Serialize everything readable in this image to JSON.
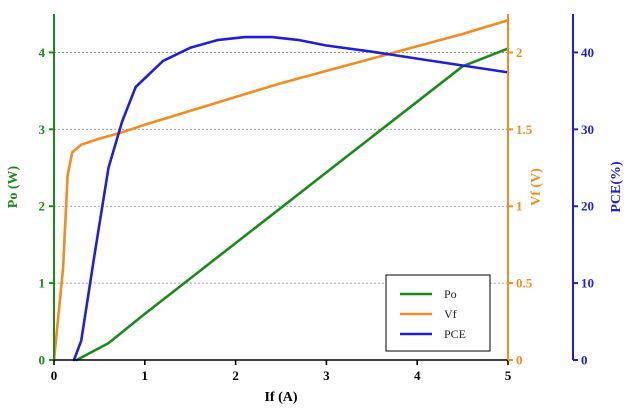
{
  "chart_data": {
    "type": "line",
    "title": "",
    "xlabel": "If (A)",
    "xlim": [
      0,
      5
    ],
    "x_ticks": [
      "0",
      "1",
      "2",
      "3",
      "4",
      "5"
    ],
    "axes": {
      "left": {
        "label": "Po (W)",
        "range": [
          0,
          4.5
        ],
        "ticks": [
          "0",
          "1",
          "2",
          "3",
          "4"
        ],
        "color": "#1a8a1a"
      },
      "right": {
        "label": "Vf (V)",
        "range": [
          0,
          2.25
        ],
        "ticks": [
          "0",
          "0.5",
          "1",
          "1.5",
          "2"
        ],
        "color": "#f28c1c"
      },
      "far_right": {
        "label": "PCE(%)",
        "range": [
          0,
          45
        ],
        "ticks": [
          "0",
          "10",
          "20",
          "30",
          "40"
        ],
        "color": "#1f1fd6"
      }
    },
    "grid": {
      "horizontal": true,
      "style": "dotted",
      "at_left_values": [
        1,
        2,
        3,
        4
      ]
    },
    "legend": {
      "position": "bottom-right",
      "entries": [
        "Po",
        "Vf",
        "PCE"
      ]
    },
    "series": [
      {
        "name": "Po",
        "axis": "left",
        "color": "#1a8a1a",
        "x": [
          0.25,
          0.6,
          1.0,
          1.5,
          2.0,
          2.5,
          3.0,
          3.5,
          4.0,
          4.5,
          5.0
        ],
        "y": [
          0.0,
          0.22,
          0.6,
          1.06,
          1.52,
          1.98,
          2.44,
          2.9,
          3.36,
          3.82,
          4.05
        ]
      },
      {
        "name": "Vf",
        "axis": "right",
        "color": "#f28c1c",
        "x": [
          0.0,
          0.1,
          0.15,
          0.2,
          0.3,
          0.5,
          0.75,
          1.0,
          1.5,
          2.0,
          2.5,
          3.0,
          3.5,
          4.0,
          4.5,
          5.0
        ],
        "y": [
          0.0,
          0.6,
          1.2,
          1.35,
          1.4,
          1.44,
          1.48,
          1.53,
          1.62,
          1.71,
          1.8,
          1.88,
          1.96,
          2.04,
          2.12,
          2.21
        ]
      },
      {
        "name": "PCE",
        "axis": "far_right",
        "color": "#1f1fd6",
        "x": [
          0.22,
          0.3,
          0.45,
          0.6,
          0.75,
          0.9,
          1.2,
          1.5,
          1.8,
          2.1,
          2.4,
          2.7,
          3.0,
          3.5,
          4.0,
          4.5,
          5.0
        ],
        "y": [
          0.0,
          2.5,
          14.0,
          25.0,
          31.0,
          35.5,
          38.9,
          40.6,
          41.6,
          42.0,
          42.0,
          41.6,
          40.9,
          40.1,
          39.2,
          38.3,
          37.4
        ]
      }
    ]
  }
}
